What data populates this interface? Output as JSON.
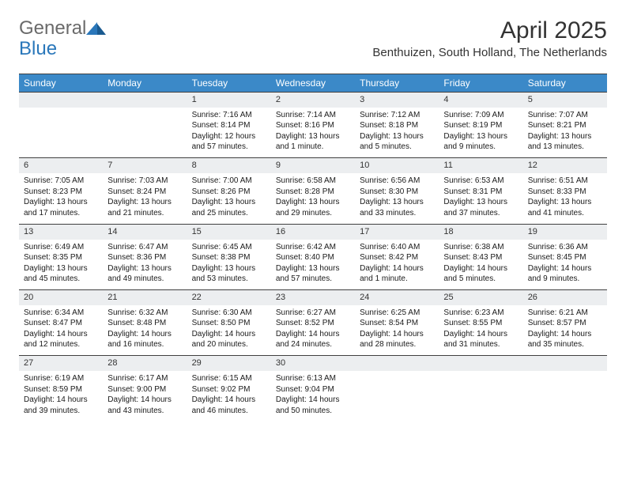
{
  "logo": {
    "text1": "General",
    "text2": "Blue"
  },
  "title": "April 2025",
  "location": "Benthuizen, South Holland, The Netherlands",
  "colors": {
    "header_bg": "#3b89c8",
    "header_text": "#ffffff",
    "daynum_bg": "#eceef0",
    "border": "#404040",
    "logo_gray": "#6a6a6a",
    "logo_blue": "#2a77ba"
  },
  "days_of_week": [
    "Sunday",
    "Monday",
    "Tuesday",
    "Wednesday",
    "Thursday",
    "Friday",
    "Saturday"
  ],
  "weeks": [
    [
      null,
      null,
      {
        "n": "1",
        "sr": "7:16 AM",
        "ss": "8:14 PM",
        "dl": "12 hours and 57 minutes."
      },
      {
        "n": "2",
        "sr": "7:14 AM",
        "ss": "8:16 PM",
        "dl": "13 hours and 1 minute."
      },
      {
        "n": "3",
        "sr": "7:12 AM",
        "ss": "8:18 PM",
        "dl": "13 hours and 5 minutes."
      },
      {
        "n": "4",
        "sr": "7:09 AM",
        "ss": "8:19 PM",
        "dl": "13 hours and 9 minutes."
      },
      {
        "n": "5",
        "sr": "7:07 AM",
        "ss": "8:21 PM",
        "dl": "13 hours and 13 minutes."
      }
    ],
    [
      {
        "n": "6",
        "sr": "7:05 AM",
        "ss": "8:23 PM",
        "dl": "13 hours and 17 minutes."
      },
      {
        "n": "7",
        "sr": "7:03 AM",
        "ss": "8:24 PM",
        "dl": "13 hours and 21 minutes."
      },
      {
        "n": "8",
        "sr": "7:00 AM",
        "ss": "8:26 PM",
        "dl": "13 hours and 25 minutes."
      },
      {
        "n": "9",
        "sr": "6:58 AM",
        "ss": "8:28 PM",
        "dl": "13 hours and 29 minutes."
      },
      {
        "n": "10",
        "sr": "6:56 AM",
        "ss": "8:30 PM",
        "dl": "13 hours and 33 minutes."
      },
      {
        "n": "11",
        "sr": "6:53 AM",
        "ss": "8:31 PM",
        "dl": "13 hours and 37 minutes."
      },
      {
        "n": "12",
        "sr": "6:51 AM",
        "ss": "8:33 PM",
        "dl": "13 hours and 41 minutes."
      }
    ],
    [
      {
        "n": "13",
        "sr": "6:49 AM",
        "ss": "8:35 PM",
        "dl": "13 hours and 45 minutes."
      },
      {
        "n": "14",
        "sr": "6:47 AM",
        "ss": "8:36 PM",
        "dl": "13 hours and 49 minutes."
      },
      {
        "n": "15",
        "sr": "6:45 AM",
        "ss": "8:38 PM",
        "dl": "13 hours and 53 minutes."
      },
      {
        "n": "16",
        "sr": "6:42 AM",
        "ss": "8:40 PM",
        "dl": "13 hours and 57 minutes."
      },
      {
        "n": "17",
        "sr": "6:40 AM",
        "ss": "8:42 PM",
        "dl": "14 hours and 1 minute."
      },
      {
        "n": "18",
        "sr": "6:38 AM",
        "ss": "8:43 PM",
        "dl": "14 hours and 5 minutes."
      },
      {
        "n": "19",
        "sr": "6:36 AM",
        "ss": "8:45 PM",
        "dl": "14 hours and 9 minutes."
      }
    ],
    [
      {
        "n": "20",
        "sr": "6:34 AM",
        "ss": "8:47 PM",
        "dl": "14 hours and 12 minutes."
      },
      {
        "n": "21",
        "sr": "6:32 AM",
        "ss": "8:48 PM",
        "dl": "14 hours and 16 minutes."
      },
      {
        "n": "22",
        "sr": "6:30 AM",
        "ss": "8:50 PM",
        "dl": "14 hours and 20 minutes."
      },
      {
        "n": "23",
        "sr": "6:27 AM",
        "ss": "8:52 PM",
        "dl": "14 hours and 24 minutes."
      },
      {
        "n": "24",
        "sr": "6:25 AM",
        "ss": "8:54 PM",
        "dl": "14 hours and 28 minutes."
      },
      {
        "n": "25",
        "sr": "6:23 AM",
        "ss": "8:55 PM",
        "dl": "14 hours and 31 minutes."
      },
      {
        "n": "26",
        "sr": "6:21 AM",
        "ss": "8:57 PM",
        "dl": "14 hours and 35 minutes."
      }
    ],
    [
      {
        "n": "27",
        "sr": "6:19 AM",
        "ss": "8:59 PM",
        "dl": "14 hours and 39 minutes."
      },
      {
        "n": "28",
        "sr": "6:17 AM",
        "ss": "9:00 PM",
        "dl": "14 hours and 43 minutes."
      },
      {
        "n": "29",
        "sr": "6:15 AM",
        "ss": "9:02 PM",
        "dl": "14 hours and 46 minutes."
      },
      {
        "n": "30",
        "sr": "6:13 AM",
        "ss": "9:04 PM",
        "dl": "14 hours and 50 minutes."
      },
      null,
      null,
      null
    ]
  ],
  "labels": {
    "sunrise": "Sunrise:",
    "sunset": "Sunset:",
    "daylight": "Daylight:"
  }
}
